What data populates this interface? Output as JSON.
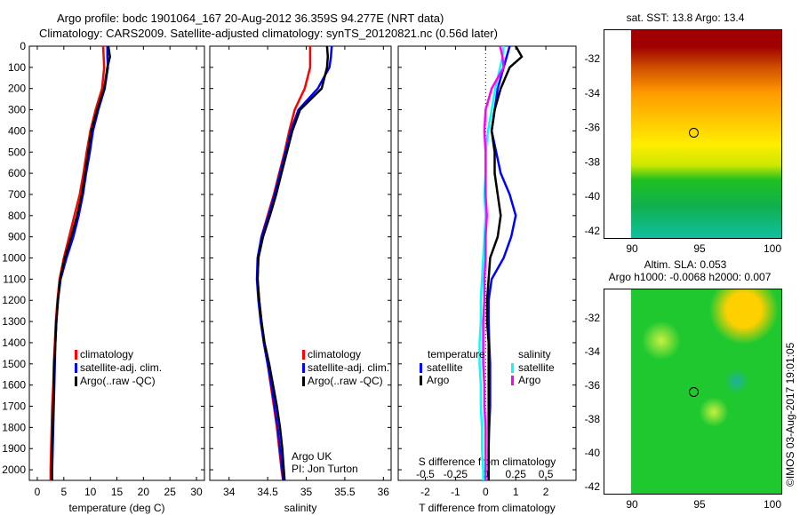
{
  "header": {
    "title": "Argo profile: bodc 1901064_167 20-Aug-2012 36.359S 94.277E (NRT data)",
    "subtitle": "Climatology: CARS2009. Satellite-adjusted climatology: synTS_20120821.nc (0.56d later)"
  },
  "colors": {
    "climatology": "#ff0000",
    "satellite": "#0000ff",
    "argo": "#000000",
    "sal_satellite": "#00ffff",
    "sal_argo": "#ff00ff"
  },
  "credit": "©IMOS 03-Aug-2017 19:01:05",
  "attribution": [
    "Argo UK",
    "PI: Jon Turton"
  ],
  "chart_data": [
    {
      "type": "line",
      "title": "",
      "xlabel": "temperature (deg C)",
      "ylabel": "",
      "xlim": [
        -1.5,
        31.5
      ],
      "ylim": [
        2050,
        0
      ],
      "xticks": [
        "0",
        "5",
        "10",
        "15",
        "20",
        "25",
        "30"
      ],
      "yticks": [
        "0",
        "100",
        "200",
        "300",
        "400",
        "500",
        "600",
        "700",
        "800",
        "900",
        "1000",
        "1100",
        "1200",
        "1300",
        "1400",
        "1500",
        "1600",
        "1700",
        "1800",
        "1900",
        "2000"
      ],
      "legend": [
        "climatology",
        "satellite-adj. clim.",
        "Argo(..raw -QC)"
      ],
      "depth": [
        0,
        50,
        100,
        200,
        300,
        400,
        500,
        600,
        700,
        800,
        900,
        1000,
        1100,
        1200,
        1300,
        1400,
        1500,
        1600,
        1700,
        1800,
        1900,
        2000,
        2050
      ],
      "series": [
        {
          "name": "climatology",
          "values": [
            12.4,
            12.5,
            12.6,
            12.2,
            11.0,
            10.0,
            9.3,
            8.7,
            8.0,
            7.0,
            6.0,
            5.0,
            4.2,
            3.8,
            3.5,
            3.3,
            3.1,
            3.0,
            2.8,
            2.7,
            2.6,
            2.5,
            2.5
          ]
        },
        {
          "name": "satellite-adj. clim.",
          "values": [
            13.2,
            13.2,
            13.3,
            12.7,
            11.5,
            10.5,
            9.9,
            9.2,
            8.6,
            7.8,
            6.8,
            5.5,
            4.4,
            3.9,
            3.6,
            3.4,
            3.3,
            3.2,
            3.1,
            3.0,
            2.9,
            2.8,
            2.8
          ]
        },
        {
          "name": "Argo(..raw -QC)",
          "values": [
            13.4,
            13.7,
            13.2,
            12.6,
            11.3,
            10.2,
            9.6,
            9.0,
            8.4,
            7.5,
            6.4,
            5.2,
            4.3,
            3.9,
            3.6,
            3.4,
            3.2,
            3.1,
            3.0,
            2.9,
            2.8,
            2.7,
            2.7
          ]
        }
      ]
    },
    {
      "type": "line",
      "title": "",
      "xlabel": "salinity",
      "ylabel": "",
      "xlim": [
        33.75,
        36.1
      ],
      "ylim": [
        2050,
        0
      ],
      "xticks": [
        "34",
        "34.5",
        "35",
        "35.5",
        "36"
      ],
      "legend": [
        "climatology",
        "satellite-adj. clim.",
        "Argo(..raw -QC)"
      ],
      "depth": [
        0,
        50,
        100,
        200,
        300,
        400,
        500,
        600,
        700,
        800,
        900,
        1000,
        1100,
        1200,
        1300,
        1400,
        1500,
        1600,
        1700,
        1800,
        1900,
        2000,
        2050
      ],
      "series": [
        {
          "name": "climatology",
          "values": [
            35.05,
            35.05,
            35.05,
            34.98,
            34.85,
            34.78,
            34.72,
            34.65,
            34.58,
            34.5,
            34.42,
            34.38,
            34.37,
            34.39,
            34.42,
            34.45,
            34.5,
            34.54,
            34.58,
            34.62,
            34.65,
            34.68,
            34.7
          ]
        },
        {
          "name": "satellite-adj. clim.",
          "values": [
            35.33,
            35.32,
            35.3,
            35.15,
            34.9,
            34.8,
            34.73,
            34.66,
            34.59,
            34.51,
            34.42,
            34.37,
            34.36,
            34.38,
            34.41,
            34.45,
            34.5,
            34.55,
            34.59,
            34.63,
            34.66,
            34.69,
            34.7
          ]
        },
        {
          "name": "Argo(..raw -QC)",
          "values": [
            35.27,
            35.28,
            35.27,
            35.2,
            34.92,
            34.82,
            34.75,
            34.68,
            34.61,
            34.53,
            34.44,
            34.38,
            34.37,
            34.39,
            34.42,
            34.46,
            34.52,
            34.57,
            34.62,
            34.66,
            34.69,
            34.71,
            34.72
          ]
        }
      ]
    },
    {
      "type": "line",
      "title": "",
      "xlabel": "T difference from climatology",
      "x2label": "S difference from climatology",
      "xlim": [
        -2.9,
        3.0
      ],
      "x2lim": [
        -0.725,
        0.75
      ],
      "ylim": [
        2050,
        0
      ],
      "xticks": [
        "-2",
        "-1",
        "0",
        "1",
        "2"
      ],
      "x2ticks": [
        "-0.5",
        "-0.25",
        "0",
        "0.25",
        "0.5"
      ],
      "legend_headers": [
        "temperature",
        "salinity"
      ],
      "legend": [
        "satellite",
        "Argo",
        "satellite",
        "Argo"
      ],
      "depth": [
        0,
        50,
        100,
        200,
        300,
        400,
        500,
        600,
        700,
        800,
        900,
        1000,
        1100,
        1200,
        1300,
        1400,
        1500,
        1600,
        1700,
        1800,
        1900,
        2000,
        2050
      ],
      "series": [
        {
          "name": "temperature satellite",
          "variable": "T",
          "values": [
            0.8,
            0.7,
            0.6,
            0.4,
            0.3,
            0.2,
            0.35,
            0.5,
            0.8,
            1.0,
            0.85,
            0.6,
            0.2,
            0.1,
            0.1,
            0.12,
            0.15,
            0.15,
            0.15,
            0.12,
            0.1,
            0.1,
            0.1
          ]
        },
        {
          "name": "temperature Argo",
          "variable": "T",
          "values": [
            1.0,
            1.2,
            0.8,
            0.5,
            0.3,
            0.2,
            0.3,
            0.3,
            0.4,
            0.5,
            0.4,
            0.15,
            0.1,
            0.05,
            0.05,
            0.1,
            0.1,
            0.1,
            0.1,
            0.1,
            0.1,
            0.1,
            0.1
          ]
        },
        {
          "name": "salinity satellite",
          "variable": "S",
          "values": [
            0.15,
            0.14,
            0.12,
            0.08,
            0.05,
            0.02,
            0.0,
            0.0,
            -0.01,
            0.0,
            -0.01,
            -0.02,
            -0.03,
            -0.04,
            -0.04,
            -0.05,
            -0.05,
            -0.04,
            -0.04,
            -0.03,
            -0.03,
            -0.02,
            -0.02
          ]
        },
        {
          "name": "salinity Argo",
          "variable": "S",
          "values": [
            0.12,
            0.14,
            0.15,
            0.05,
            0.0,
            -0.01,
            0.0,
            0.0,
            0.0,
            0.01,
            0.0,
            0.0,
            -0.01,
            -0.01,
            -0.02,
            -0.02,
            -0.02,
            -0.01,
            -0.01,
            0.0,
            0.0,
            0.0,
            0.0
          ]
        }
      ]
    },
    {
      "type": "heatmap",
      "title": "sat. SST: 13.8 Argo: 13.4",
      "xticks": [
        "90",
        "95",
        "100"
      ],
      "yticks": [
        "-32",
        "-34",
        "-36",
        "-38",
        "-40",
        "-42"
      ],
      "marker": {
        "lon": 94.277,
        "lat": -36.359
      }
    },
    {
      "type": "heatmap",
      "title": "Altim. SLA: 0.053",
      "subtitle": "Argo h1000: -0.0068 h2000: 0.007",
      "xticks": [
        "90",
        "95",
        "100"
      ],
      "yticks": [
        "-32",
        "-34",
        "-36",
        "-38",
        "-40",
        "-42"
      ],
      "marker": {
        "lon": 94.277,
        "lat": -36.359
      }
    }
  ]
}
